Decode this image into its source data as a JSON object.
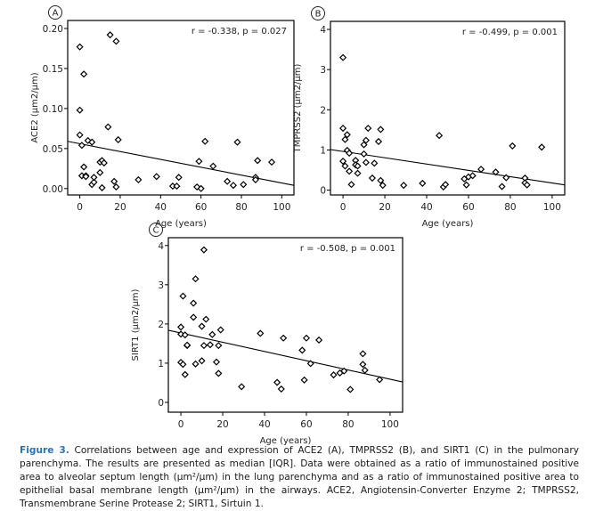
{
  "chart_data": [
    {
      "id": "A",
      "type": "scatter",
      "panel_label": "A",
      "title": "",
      "xlabel": "Age (years)",
      "ylabel": "ACE2 (μm2/μm)",
      "annotation": "r = -0.338, p = 0.027",
      "xlim": [
        -6,
        106
      ],
      "ylim": [
        -0.008,
        0.21
      ],
      "xticks": [
        0,
        20,
        40,
        60,
        80,
        100
      ],
      "yticks": [
        0.0,
        0.05,
        0.1,
        0.15,
        0.2
      ],
      "ytick_labels": [
        "0.00",
        "0.05",
        "0.10",
        "0.15",
        "0.20"
      ],
      "xtick_labels": [
        "0",
        "20",
        "40",
        "60",
        "80",
        "100"
      ],
      "regression": {
        "x": [
          -6,
          106
        ],
        "y": [
          0.059,
          0.004
        ]
      },
      "points": [
        [
          0,
          0.177
        ],
        [
          2,
          0.143
        ],
        [
          0,
          0.098
        ],
        [
          0,
          0.067
        ],
        [
          1,
          0.054
        ],
        [
          4,
          0.06
        ],
        [
          6,
          0.058
        ],
        [
          2,
          0.027
        ],
        [
          1,
          0.016
        ],
        [
          3,
          0.016
        ],
        [
          3,
          0.015
        ],
        [
          6,
          0.005
        ],
        [
          7,
          0.008
        ],
        [
          7,
          0.014
        ],
        [
          10,
          0.033
        ],
        [
          11,
          0.035
        ],
        [
          12,
          0.032
        ],
        [
          10,
          0.02
        ],
        [
          11,
          0.001
        ],
        [
          14,
          0.077
        ],
        [
          15,
          0.192
        ],
        [
          18,
          0.184
        ],
        [
          19,
          0.061
        ],
        [
          17,
          0.009
        ],
        [
          18,
          0.002
        ],
        [
          29,
          0.011
        ],
        [
          38,
          0.015
        ],
        [
          46,
          0.003
        ],
        [
          48,
          0.003
        ],
        [
          49,
          0.014
        ],
        [
          58,
          0.002
        ],
        [
          59,
          0.034
        ],
        [
          60,
          0.0
        ],
        [
          62,
          0.059
        ],
        [
          66,
          0.028
        ],
        [
          73,
          0.009
        ],
        [
          76,
          0.004
        ],
        [
          78,
          0.058
        ],
        [
          81,
          0.005
        ],
        [
          87,
          0.014
        ],
        [
          87,
          0.011
        ],
        [
          88,
          0.035
        ],
        [
          95,
          0.033
        ]
      ]
    },
    {
      "id": "B",
      "type": "scatter",
      "panel_label": "B",
      "title": "",
      "xlabel": "Age (years)",
      "ylabel": "TMPRSS2 (μm2/μm)",
      "annotation": "r = -0.499, p = 0.001",
      "xlim": [
        -6,
        106
      ],
      "ylim": [
        -0.12,
        4.2
      ],
      "xticks": [
        0,
        20,
        40,
        60,
        80,
        100
      ],
      "yticks": [
        0,
        1,
        2,
        3,
        4
      ],
      "ytick_labels": [
        "0",
        "1",
        "2",
        "3",
        "4"
      ],
      "xtick_labels": [
        "0",
        "20",
        "40",
        "60",
        "80",
        "100"
      ],
      "regression": {
        "x": [
          -6,
          106
        ],
        "y": [
          1.01,
          0.13
        ]
      },
      "points": [
        [
          0,
          3.3
        ],
        [
          0,
          1.54
        ],
        [
          2,
          1.38
        ],
        [
          1,
          1.26
        ],
        [
          2,
          0.99
        ],
        [
          3,
          0.92
        ],
        [
          0,
          0.72
        ],
        [
          1,
          0.6
        ],
        [
          3,
          0.47
        ],
        [
          4,
          0.14
        ],
        [
          6,
          0.74
        ],
        [
          6,
          0.63
        ],
        [
          7,
          0.6
        ],
        [
          7,
          0.42
        ],
        [
          10,
          1.13
        ],
        [
          11,
          1.24
        ],
        [
          12,
          1.54
        ],
        [
          10,
          0.9
        ],
        [
          11,
          0.69
        ],
        [
          14,
          0.3
        ],
        [
          15,
          0.67
        ],
        [
          17,
          1.21
        ],
        [
          18,
          1.51
        ],
        [
          18,
          0.24
        ],
        [
          19,
          0.12
        ],
        [
          29,
          0.12
        ],
        [
          38,
          0.17
        ],
        [
          46,
          1.36
        ],
        [
          48,
          0.08
        ],
        [
          49,
          0.14
        ],
        [
          58,
          0.28
        ],
        [
          59,
          0.13
        ],
        [
          60,
          0.33
        ],
        [
          62,
          0.36
        ],
        [
          66,
          0.52
        ],
        [
          73,
          0.45
        ],
        [
          76,
          0.09
        ],
        [
          78,
          0.31
        ],
        [
          81,
          1.1
        ],
        [
          87,
          0.3
        ],
        [
          87,
          0.18
        ],
        [
          88,
          0.13
        ],
        [
          95,
          1.07
        ]
      ]
    },
    {
      "id": "C",
      "type": "scatter",
      "panel_label": "C",
      "title": "",
      "xlabel": "Age (years)",
      "ylabel": "SIRT1 (μm2/μm)",
      "annotation": "r = -0.508, p = 0.001",
      "xlim": [
        -6,
        106
      ],
      "ylim": [
        -0.25,
        4.2
      ],
      "xticks": [
        0,
        20,
        40,
        60,
        80,
        100
      ],
      "yticks": [
        0,
        1,
        2,
        3,
        4
      ],
      "ytick_labels": [
        "0",
        "1",
        "2",
        "3",
        "4"
      ],
      "xtick_labels": [
        "0",
        "20",
        "40",
        "60",
        "80",
        "100"
      ],
      "regression": {
        "x": [
          -6,
          106
        ],
        "y": [
          1.84,
          0.52
        ]
      },
      "points": [
        [
          0,
          1.92
        ],
        [
          0,
          1.74
        ],
        [
          2,
          1.72
        ],
        [
          0,
          1.02
        ],
        [
          1,
          0.97
        ],
        [
          2,
          0.71
        ],
        [
          1,
          2.71
        ],
        [
          3,
          1.45
        ],
        [
          3,
          1.46
        ],
        [
          6,
          2.53
        ],
        [
          6,
          2.17
        ],
        [
          7,
          3.15
        ],
        [
          7,
          0.98
        ],
        [
          10,
          1.94
        ],
        [
          11,
          3.89
        ],
        [
          11,
          1.45
        ],
        [
          12,
          2.12
        ],
        [
          10,
          1.06
        ],
        [
          14,
          1.47
        ],
        [
          15,
          1.73
        ],
        [
          17,
          1.03
        ],
        [
          18,
          1.45
        ],
        [
          18,
          0.74
        ],
        [
          19,
          1.85
        ],
        [
          29,
          0.4
        ],
        [
          38,
          1.76
        ],
        [
          46,
          0.51
        ],
        [
          48,
          0.34
        ],
        [
          49,
          1.64
        ],
        [
          58,
          1.33
        ],
        [
          59,
          0.57
        ],
        [
          60,
          1.64
        ],
        [
          62,
          0.99
        ],
        [
          66,
          1.59
        ],
        [
          73,
          0.7
        ],
        [
          76,
          0.75
        ],
        [
          78,
          0.8
        ],
        [
          81,
          0.33
        ],
        [
          87,
          1.24
        ],
        [
          87,
          0.97
        ],
        [
          88,
          0.82
        ],
        [
          95,
          0.58
        ]
      ]
    }
  ],
  "caption": {
    "label": "Figure 3.",
    "text": " Correlations between age and expression of ACE2 (A), TMPRSS2 (B), and SIRT1 (C) in the pulmonary parenchyma. The results are presented as median [IQR]. Data were obtained as a ratio of immunostained positive area to alveolar septum length (μm²/μm) in the lung parenchyma and as a ratio of immunostained positive area to epithelial basal membrane length (μm²/μm) in the airways. ACE2, Angiotensin-Converter Enzyme 2; TMPRSS2, Transmembrane Serine Protease 2; SIRT1, Sirtuin 1."
  },
  "colors": {
    "caption_label": "#2a72b5",
    "axis": "#000000",
    "marker": "#000000"
  }
}
